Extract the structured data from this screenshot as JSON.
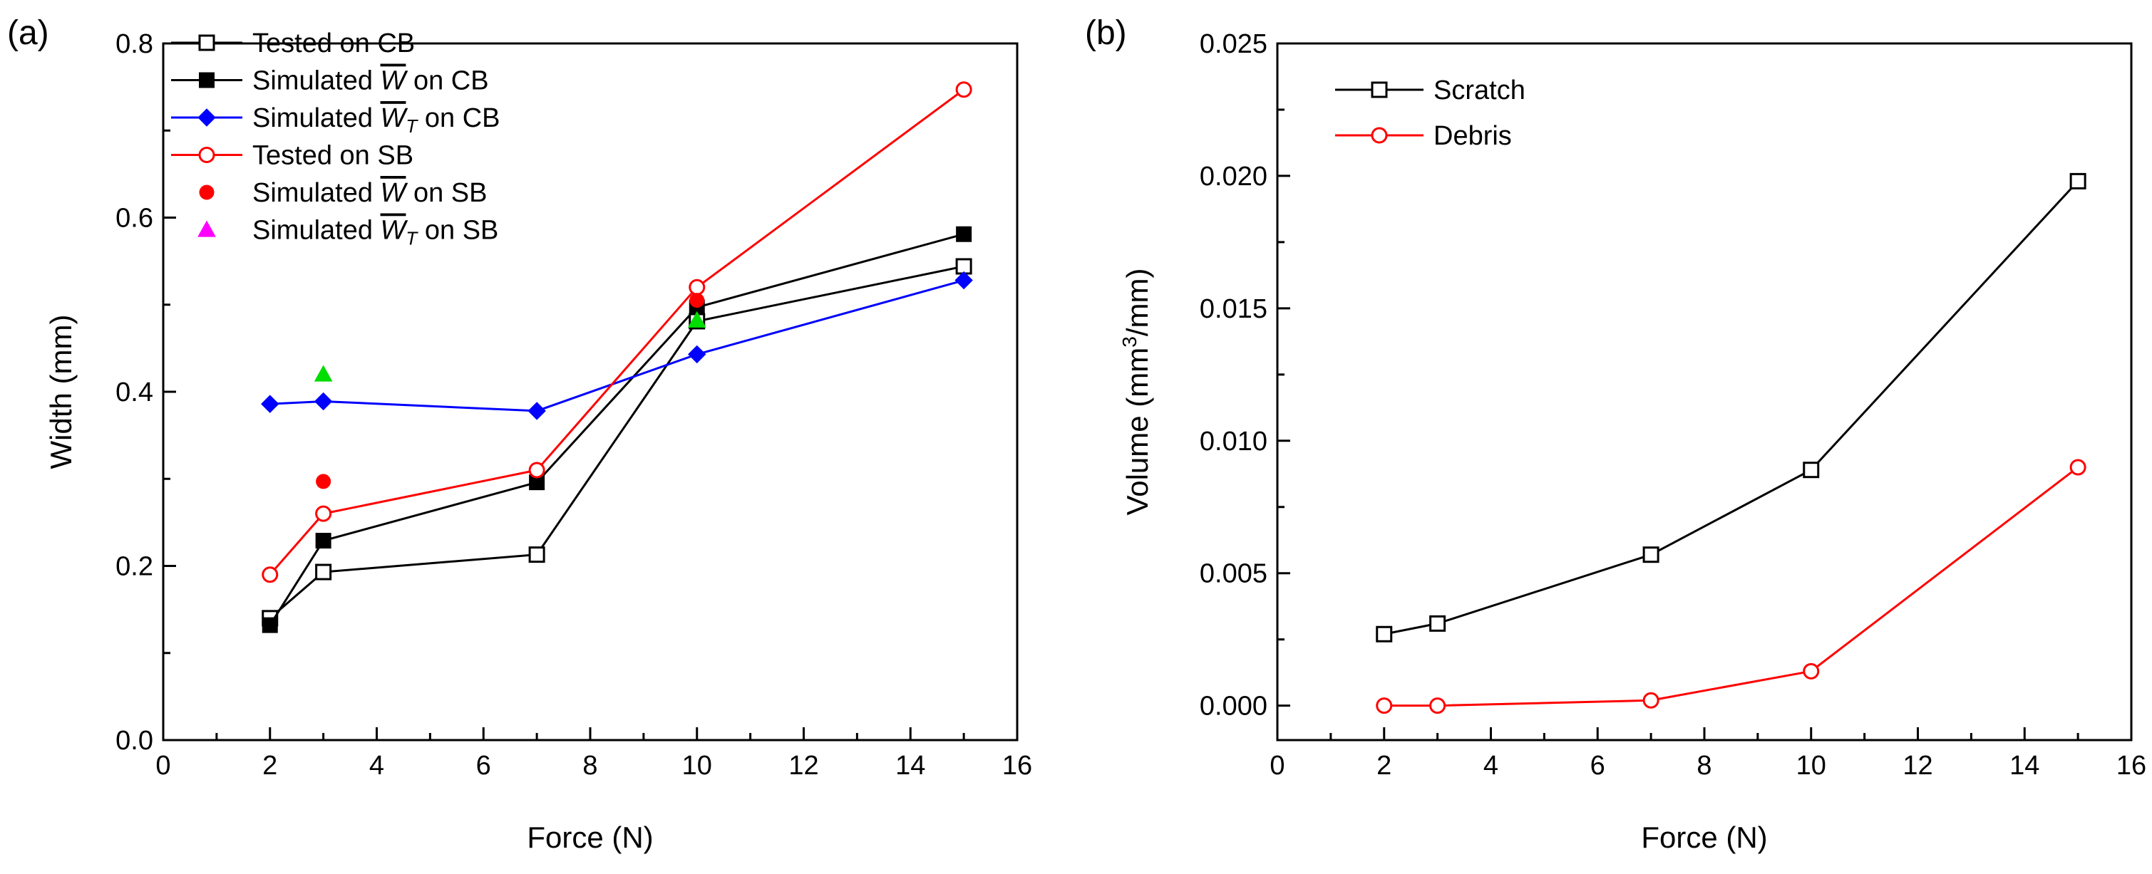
{
  "chart_data": [
    {
      "panel_label": "(a)",
      "type": "line",
      "xlabel": "Force (N)",
      "ylabel": "Width (mm)",
      "xlim": [
        0,
        16
      ],
      "ylim": [
        0.0,
        0.8
      ],
      "xticks": [
        0,
        2,
        4,
        6,
        8,
        10,
        12,
        14,
        16
      ],
      "xtick_labels": [
        "0",
        "2",
        "4",
        "6",
        "8",
        "10",
        "12",
        "14",
        "16"
      ],
      "yticks": [
        0.0,
        0.2,
        0.4,
        0.6,
        0.8
      ],
      "ytick_labels": [
        "0.0",
        "0.2",
        "0.4",
        "0.6",
        "0.8"
      ],
      "legend_position": "top-left",
      "series": [
        {
          "name": "Tested on CB",
          "legend": {
            "pre": "Tested on CB",
            "over": "",
            "sub": "",
            "post": ""
          },
          "color": "#000000",
          "marker": "square-open",
          "line": true,
          "x": [
            2,
            3,
            7,
            10,
            15
          ],
          "y": [
            0.14,
            0.193,
            0.213,
            0.481,
            0.544
          ]
        },
        {
          "name": "Simulated W on CB",
          "legend": {
            "pre": "Simulated ",
            "over": "W",
            "sub": "",
            "post": "  on CB"
          },
          "color": "#000000",
          "marker": "square-filled",
          "line": true,
          "x": [
            2,
            3,
            7,
            10,
            15
          ],
          "y": [
            0.132,
            0.229,
            0.296,
            0.497,
            0.581
          ]
        },
        {
          "name": "Simulated WT on CB",
          "legend": {
            "pre": "Simulated ",
            "over": "W",
            "sub": "T",
            "post": " on CB"
          },
          "color": "#0000ff",
          "marker": "diamond-filled",
          "line": true,
          "x": [
            2,
            3,
            7,
            10,
            15
          ],
          "y": [
            0.386,
            0.389,
            0.378,
            0.443,
            0.528
          ]
        },
        {
          "name": "Tested on SB",
          "legend": {
            "pre": "Tested on SB",
            "over": "",
            "sub": "",
            "post": ""
          },
          "color": "#ff0000",
          "marker": "circle-open",
          "line": true,
          "x": [
            2,
            3,
            7,
            10,
            15
          ],
          "y": [
            0.19,
            0.26,
            0.31,
            0.52,
            0.747
          ]
        },
        {
          "name": "Simulated W on SB",
          "legend": {
            "pre": "Simulated ",
            "over": "W",
            "sub": "",
            "post": " on SB"
          },
          "color": "#ff0000",
          "marker": "circle-filled",
          "line": false,
          "x": [
            3,
            10
          ],
          "y": [
            0.297,
            0.505
          ]
        },
        {
          "name": "Simulated WT on SB",
          "legend": {
            "pre": "Simulated ",
            "over": "W",
            "sub": "T",
            "post": " on SB"
          },
          "color": "#ff00ff",
          "marker": "triangle-filled",
          "line": false,
          "x": [
            3,
            10
          ],
          "y": [
            0.42,
            0.482
          ],
          "point_colors": [
            "#00dd00",
            "#00dd00"
          ]
        }
      ]
    },
    {
      "panel_label": "(b)",
      "type": "line",
      "xlabel": "Force (N)",
      "ylabel_parts": {
        "pre": "Volume (mm",
        "sup": "3",
        "post": "/mm)"
      },
      "xlim": [
        0,
        16
      ],
      "ylim": [
        -0.0013,
        0.025
      ],
      "xticks": [
        0,
        2,
        4,
        6,
        8,
        10,
        12,
        14,
        16
      ],
      "xtick_labels": [
        "0",
        "2",
        "4",
        "6",
        "8",
        "10",
        "12",
        "14",
        "16"
      ],
      "yticks": [
        0.0,
        0.005,
        0.01,
        0.015,
        0.02,
        0.025
      ],
      "ytick_labels": [
        "0.000",
        "0.005",
        "0.010",
        "0.015",
        "0.020",
        "0.025"
      ],
      "legend_position": "top-left",
      "series": [
        {
          "name": "Scratch",
          "legend": {
            "pre": "Scratch",
            "over": "",
            "sub": "",
            "post": ""
          },
          "color": "#000000",
          "marker": "square-open",
          "line": true,
          "x": [
            2,
            3,
            7,
            10,
            15
          ],
          "y": [
            0.0027,
            0.0031,
            0.0057,
            0.0089,
            0.0198
          ]
        },
        {
          "name": "Debris",
          "legend": {
            "pre": "Debris",
            "over": "",
            "sub": "",
            "post": ""
          },
          "color": "#ff0000",
          "marker": "circle-open",
          "line": true,
          "x": [
            2,
            3,
            7,
            10,
            15
          ],
          "y": [
            0.0,
            0.0,
            0.0002,
            0.0013,
            0.009
          ]
        }
      ]
    }
  ]
}
